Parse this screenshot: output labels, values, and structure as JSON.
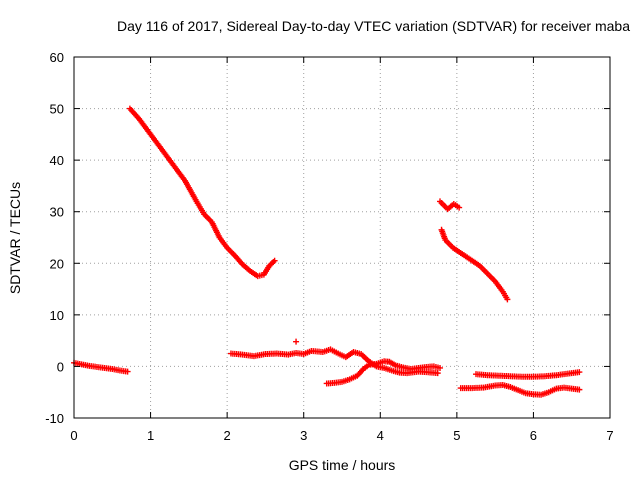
{
  "chart_data": {
    "type": "scatter",
    "title": "Day 116 of 2017, Sidereal Day-to-day VTEC variation (SDTVAR) for receiver maba",
    "xlabel": "GPS time / hours",
    "ylabel": "SDTVAR / TECUs",
    "xlim": [
      0,
      7
    ],
    "ylim": [
      -10,
      60
    ],
    "xticks": [
      "0",
      "1",
      "2",
      "3",
      "4",
      "5",
      "6",
      "7"
    ],
    "yticks": [
      "-10",
      "0",
      "10",
      "20",
      "30",
      "40",
      "50",
      "60"
    ],
    "grid": true,
    "marker": "plus",
    "color": "#ff0000",
    "series": [
      {
        "points": [
          [
            0.0,
            0.7
          ],
          [
            0.1,
            0.4
          ],
          [
            0.2,
            0.1
          ],
          [
            0.3,
            -0.1
          ],
          [
            0.4,
            -0.3
          ],
          [
            0.5,
            -0.5
          ],
          [
            0.6,
            -0.8
          ],
          [
            0.7,
            -1.0
          ]
        ]
      },
      {
        "points": [
          [
            0.73,
            50.0
          ],
          [
            0.85,
            48.0
          ],
          [
            1.0,
            45.0
          ],
          [
            1.15,
            42.0
          ],
          [
            1.3,
            39.0
          ],
          [
            1.45,
            36.0
          ],
          [
            1.6,
            32.0
          ],
          [
            1.7,
            29.5
          ],
          [
            1.8,
            28.0
          ],
          [
            1.9,
            25.0
          ],
          [
            2.0,
            23.0
          ],
          [
            2.1,
            21.5
          ],
          [
            2.2,
            19.8
          ],
          [
            2.3,
            18.5
          ],
          [
            2.4,
            17.5
          ],
          [
            2.48,
            17.8
          ],
          [
            2.55,
            19.5
          ],
          [
            2.62,
            20.5
          ]
        ]
      },
      {
        "points": [
          [
            2.05,
            2.5
          ],
          [
            2.2,
            2.3
          ],
          [
            2.35,
            2.0
          ],
          [
            2.5,
            2.4
          ],
          [
            2.65,
            2.5
          ],
          [
            2.8,
            2.3
          ],
          [
            2.9,
            2.6
          ],
          [
            3.0,
            2.4
          ],
          [
            3.1,
            3.0
          ],
          [
            3.25,
            2.8
          ],
          [
            3.35,
            3.3
          ],
          [
            3.45,
            2.5
          ],
          [
            3.55,
            1.8
          ],
          [
            3.65,
            2.8
          ],
          [
            3.75,
            2.4
          ],
          [
            3.85,
            1.0
          ],
          [
            3.95,
            0.0
          ],
          [
            4.05,
            -0.3
          ],
          [
            4.15,
            -0.8
          ],
          [
            4.25,
            -1.2
          ],
          [
            4.35,
            -1.3
          ],
          [
            4.5,
            -1.0
          ],
          [
            4.6,
            -1.1
          ],
          [
            4.75,
            -1.3
          ]
        ],
        "extra": [
          [
            2.9,
            4.8
          ]
        ]
      },
      {
        "points": [
          [
            3.3,
            -3.3
          ],
          [
            3.4,
            -3.2
          ],
          [
            3.5,
            -3.0
          ],
          [
            3.6,
            -2.5
          ],
          [
            3.7,
            -1.8
          ],
          [
            3.78,
            -0.5
          ],
          [
            3.85,
            0.3
          ],
          [
            3.95,
            0.5
          ],
          [
            4.05,
            1.0
          ],
          [
            4.12,
            0.9
          ],
          [
            4.2,
            0.2
          ],
          [
            4.3,
            -0.2
          ],
          [
            4.4,
            -0.5
          ],
          [
            4.5,
            -0.3
          ],
          [
            4.6,
            -0.1
          ],
          [
            4.7,
            0.0
          ],
          [
            4.78,
            -0.3
          ]
        ]
      },
      {
        "points": [
          [
            4.78,
            32.0
          ],
          [
            4.88,
            30.5
          ],
          [
            4.96,
            31.5
          ],
          [
            5.03,
            30.8
          ]
        ]
      },
      {
        "points": [
          [
            4.8,
            26.5
          ],
          [
            4.85,
            24.5
          ],
          [
            4.95,
            23.0
          ],
          [
            5.05,
            22.0
          ],
          [
            5.2,
            20.5
          ],
          [
            5.3,
            19.5
          ],
          [
            5.4,
            18.0
          ],
          [
            5.5,
            16.5
          ],
          [
            5.6,
            14.5
          ],
          [
            5.66,
            13.0
          ]
        ]
      },
      {
        "points": [
          [
            5.25,
            -1.5
          ],
          [
            5.4,
            -1.7
          ],
          [
            5.55,
            -1.8
          ],
          [
            5.7,
            -1.9
          ],
          [
            5.85,
            -2.0
          ],
          [
            6.0,
            -2.0
          ],
          [
            6.15,
            -1.9
          ],
          [
            6.3,
            -1.7
          ],
          [
            6.45,
            -1.4
          ],
          [
            6.6,
            -1.1
          ]
        ]
      },
      {
        "points": [
          [
            5.05,
            -4.2
          ],
          [
            5.2,
            -4.2
          ],
          [
            5.35,
            -4.1
          ],
          [
            5.5,
            -3.7
          ],
          [
            5.6,
            -3.6
          ],
          [
            5.7,
            -4.0
          ],
          [
            5.8,
            -4.6
          ],
          [
            5.9,
            -5.2
          ],
          [
            6.0,
            -5.4
          ],
          [
            6.1,
            -5.5
          ],
          [
            6.2,
            -5.0
          ],
          [
            6.3,
            -4.3
          ],
          [
            6.4,
            -4.1
          ],
          [
            6.5,
            -4.3
          ],
          [
            6.6,
            -4.5
          ]
        ]
      }
    ]
  }
}
